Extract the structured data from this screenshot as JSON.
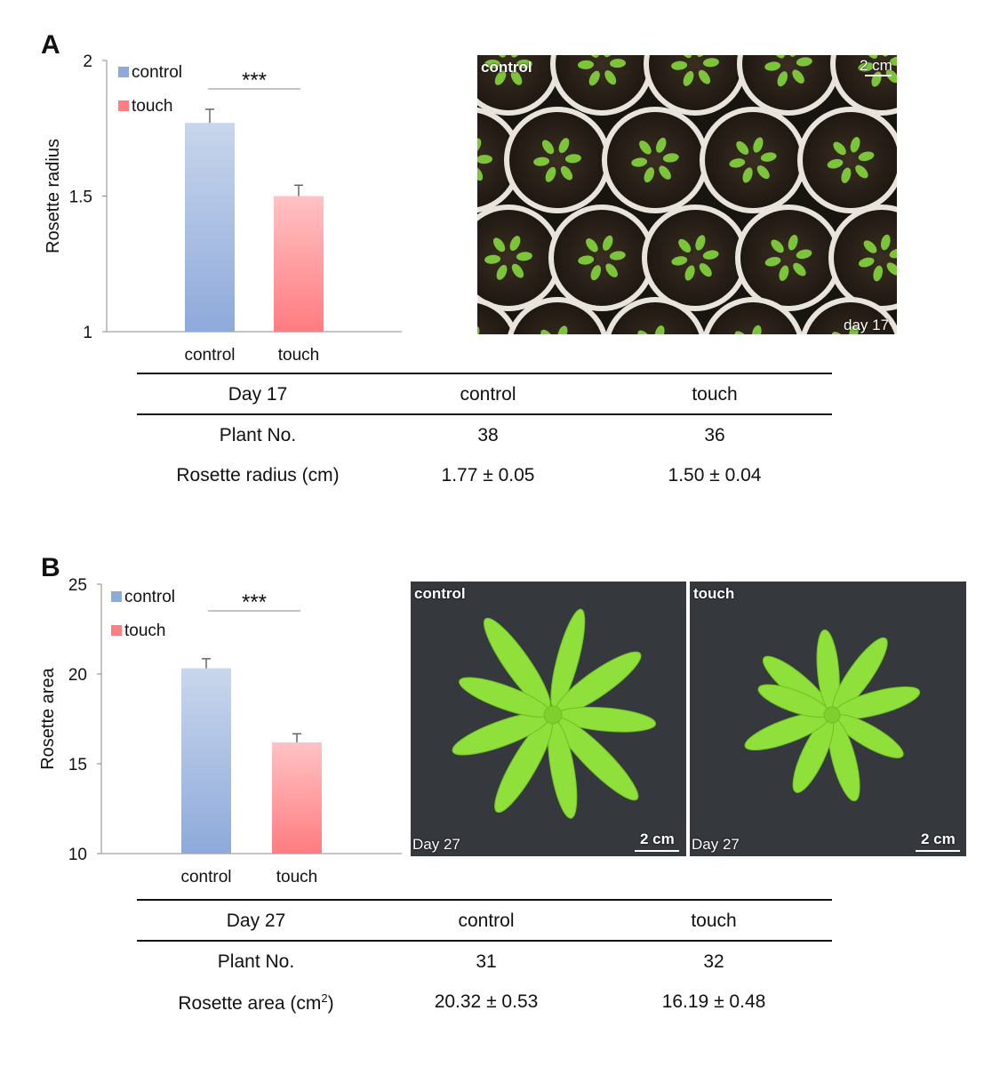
{
  "panels": [
    {
      "letter": "A",
      "chart_data": {
        "type": "bar",
        "categories": [
          "control",
          "touch"
        ],
        "values": [
          1.77,
          1.5
        ],
        "errors": [
          0.05,
          0.04
        ],
        "ylabel": "Rosette radius",
        "ylim": [
          1,
          2
        ],
        "yticks": [
          "1",
          "1.5",
          "2"
        ],
        "ytick_values": [
          1,
          1.5,
          2
        ],
        "legend": [
          "control",
          "touch"
        ],
        "significance": "***",
        "colors": [
          "#8eaadb",
          "#ff7c80"
        ]
      },
      "photo": {
        "label": "control",
        "scale": "2 cm",
        "day": "day 17"
      },
      "table": {
        "header": [
          "Day 17",
          "control",
          "touch"
        ],
        "rows": [
          [
            "Plant No.",
            "38",
            "36"
          ],
          [
            "Rosette radius (cm)",
            "1.77 ± 0.05",
            "1.50 ± 0.04"
          ]
        ]
      }
    },
    {
      "letter": "B",
      "chart_data": {
        "type": "bar",
        "categories": [
          "control",
          "touch"
        ],
        "values": [
          20.32,
          16.19
        ],
        "errors": [
          0.53,
          0.48
        ],
        "ylabel": "Rosette area",
        "ylim": [
          10,
          25
        ],
        "yticks": [
          "10",
          "15",
          "20",
          "25"
        ],
        "ytick_values": [
          10,
          15,
          20,
          25
        ],
        "legend": [
          "control",
          "touch"
        ],
        "significance": "***",
        "colors": [
          "#8eaadb",
          "#ff7c80"
        ]
      },
      "photos": [
        {
          "label": "control",
          "day": "Day 27",
          "scale": "2 cm"
        },
        {
          "label": "touch",
          "day": "Day 27",
          "scale": "2 cm"
        }
      ],
      "table": {
        "header": [
          "Day 27",
          "control",
          "touch"
        ],
        "rows": [
          [
            "Plant No.",
            "31",
            "32"
          ],
          [
            "Rosette area (cm",
            "20.32 ± 0.53",
            "16.19 ± 0.48"
          ]
        ],
        "superscript": "2",
        "close_paren": ")"
      }
    }
  ]
}
